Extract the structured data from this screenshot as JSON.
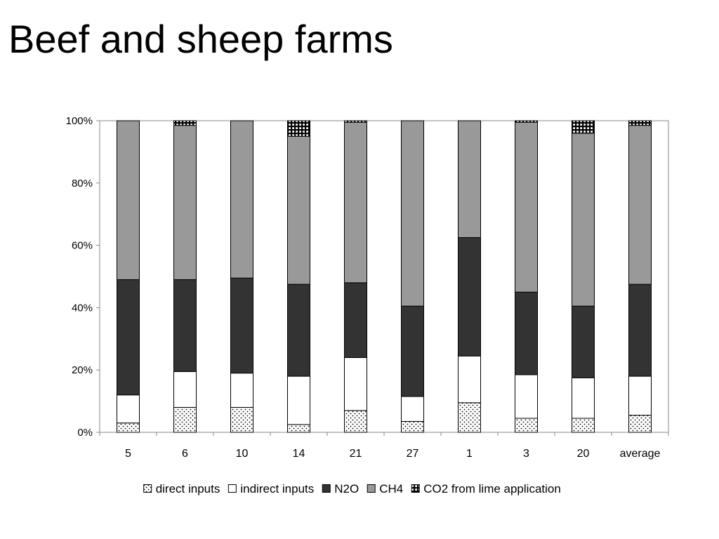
{
  "slide": {
    "title": "Beef and sheep farms"
  },
  "chart_data": {
    "type": "bar",
    "stacked": true,
    "normalized": true,
    "categories": [
      "5",
      "6",
      "10",
      "14",
      "21",
      "27",
      "1",
      "3",
      "20",
      "average"
    ],
    "ylim": [
      0,
      100
    ],
    "yticks": [
      0,
      20,
      40,
      60,
      80,
      100
    ],
    "ytick_labels": [
      "0%",
      "20%",
      "40%",
      "60%",
      "80%",
      "100%"
    ],
    "legend_position": "bottom",
    "grid": false,
    "series": [
      {
        "name": "direct inputs",
        "pattern": "dots",
        "values": [
          3,
          8,
          8,
          2.5,
          7,
          3.5,
          9.5,
          4.5,
          4.5,
          5.5
        ]
      },
      {
        "name": "indirect inputs",
        "pattern": "white",
        "values": [
          9,
          11.5,
          11,
          15.5,
          17,
          8,
          15,
          14,
          13,
          12.5
        ]
      },
      {
        "name": "N2O",
        "pattern": "dark",
        "color": "#333333",
        "values": [
          37,
          29.5,
          30.5,
          29.5,
          24,
          29,
          38,
          26.5,
          23,
          29.5
        ]
      },
      {
        "name": "CH4",
        "pattern": "gray",
        "color": "#999999",
        "values": [
          51,
          49.5,
          50.5,
          47.5,
          51.5,
          59.5,
          37.5,
          54.5,
          55.5,
          51
        ]
      },
      {
        "name": "CO2 from lime application",
        "pattern": "grid",
        "values": [
          0,
          1.5,
          0,
          5,
          0.5,
          0,
          0,
          0.5,
          4,
          1.5
        ]
      }
    ]
  }
}
